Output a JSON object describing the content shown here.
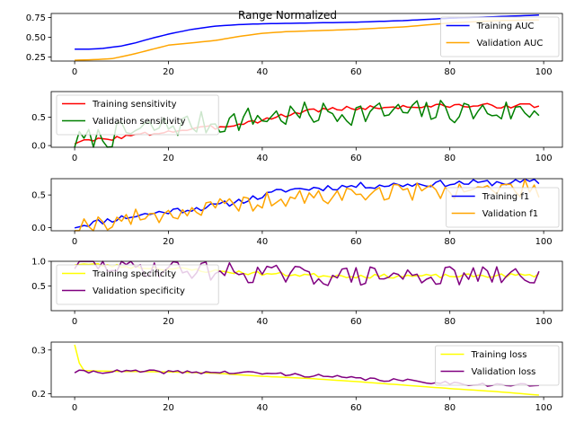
{
  "figure": {
    "title": "Range Normalized"
  },
  "chart_data": [
    {
      "type": "line",
      "ylim": [
        0.2,
        0.8
      ],
      "xlim": [
        -5,
        104
      ],
      "yticks": [
        0.25,
        0.5,
        0.75
      ],
      "ytick_labels": [
        "0.25",
        "0.50",
        "0.75"
      ],
      "xticks": [
        0,
        20,
        40,
        60,
        80,
        100
      ],
      "xtick_labels": [
        "0",
        "20",
        "40",
        "60",
        "80",
        "100"
      ],
      "legend": "upper-right",
      "series": [
        {
          "name": "Training AUC",
          "color": "#0000ff",
          "kind": "smooth",
          "keypoints": [
            [
              0,
              0.35
            ],
            [
              3,
              0.35
            ],
            [
              6,
              0.36
            ],
            [
              10,
              0.39
            ],
            [
              13,
              0.43
            ],
            [
              16,
              0.48
            ],
            [
              20,
              0.54
            ],
            [
              25,
              0.6
            ],
            [
              30,
              0.64
            ],
            [
              35,
              0.66
            ],
            [
              40,
              0.67
            ],
            [
              50,
              0.68
            ],
            [
              60,
              0.69
            ],
            [
              70,
              0.71
            ],
            [
              80,
              0.74
            ],
            [
              90,
              0.76
            ],
            [
              99,
              0.78
            ]
          ]
        },
        {
          "name": "Validation AUC",
          "color": "#ffa500",
          "kind": "smooth",
          "keypoints": [
            [
              0,
              0.21
            ],
            [
              5,
              0.22
            ],
            [
              8,
              0.23
            ],
            [
              12,
              0.28
            ],
            [
              16,
              0.34
            ],
            [
              20,
              0.4
            ],
            [
              25,
              0.43
            ],
            [
              30,
              0.46
            ],
            [
              35,
              0.51
            ],
            [
              40,
              0.55
            ],
            [
              45,
              0.57
            ],
            [
              50,
              0.58
            ],
            [
              60,
              0.6
            ],
            [
              70,
              0.63
            ],
            [
              80,
              0.68
            ],
            [
              90,
              0.71
            ],
            [
              99,
              0.72
            ]
          ]
        }
      ]
    },
    {
      "type": "line",
      "ylim": [
        -0.03,
        0.95
      ],
      "xlim": [
        -5,
        104
      ],
      "yticks": [
        0.0,
        0.5
      ],
      "ytick_labels": [
        "0.0",
        "0.5"
      ],
      "xticks": [
        0,
        20,
        40,
        60,
        80,
        100
      ],
      "xtick_labels": [
        "0",
        "20",
        "40",
        "60",
        "80",
        "100"
      ],
      "legend": "upper-left",
      "series": [
        {
          "name": "Training sensitivity",
          "color": "#ff0000",
          "kind": "ramp-noise",
          "keypoints": [
            [
              0,
              0.05
            ],
            [
              10,
              0.15
            ],
            [
              20,
              0.25
            ],
            [
              30,
              0.32
            ],
            [
              40,
              0.45
            ],
            [
              50,
              0.62
            ],
            [
              60,
              0.66
            ],
            [
              70,
              0.68
            ],
            [
              80,
              0.7
            ],
            [
              99,
              0.7
            ]
          ],
          "noise": 0.04,
          "seed": 3
        },
        {
          "name": "Validation sensitivity",
          "color": "#008000",
          "kind": "ramp-noise",
          "keypoints": [
            [
              0,
              0.05
            ],
            [
              10,
              0.2
            ],
            [
              20,
              0.35
            ],
            [
              30,
              0.4
            ],
            [
              40,
              0.5
            ],
            [
              50,
              0.55
            ],
            [
              60,
              0.58
            ],
            [
              70,
              0.58
            ],
            [
              80,
              0.6
            ],
            [
              99,
              0.6
            ]
          ],
          "noise": 0.22,
          "seed": 7
        }
      ]
    },
    {
      "type": "line",
      "ylim": [
        -0.05,
        0.75
      ],
      "xlim": [
        -5,
        104
      ],
      "yticks": [
        0.0,
        0.5
      ],
      "ytick_labels": [
        "0.0",
        "0.5"
      ],
      "xticks": [
        0,
        20,
        40,
        60,
        80,
        100
      ],
      "xtick_labels": [
        "0",
        "20",
        "40",
        "60",
        "80",
        "100"
      ],
      "legend": "lower-right",
      "series": [
        {
          "name": "Training f1",
          "color": "#0000ff",
          "kind": "ramp-noise",
          "keypoints": [
            [
              0,
              0.02
            ],
            [
              10,
              0.15
            ],
            [
              20,
              0.25
            ],
            [
              30,
              0.33
            ],
            [
              40,
              0.48
            ],
            [
              45,
              0.58
            ],
            [
              50,
              0.6
            ],
            [
              60,
              0.64
            ],
            [
              70,
              0.66
            ],
            [
              80,
              0.68
            ],
            [
              99,
              0.7
            ]
          ],
          "noise": 0.05,
          "seed": 11
        },
        {
          "name": "Validation f1",
          "color": "#ffa500",
          "kind": "ramp-noise",
          "keypoints": [
            [
              0,
              0.02
            ],
            [
              10,
              0.12
            ],
            [
              20,
              0.22
            ],
            [
              30,
              0.3
            ],
            [
              40,
              0.4
            ],
            [
              50,
              0.45
            ],
            [
              60,
              0.52
            ],
            [
              70,
              0.55
            ],
            [
              80,
              0.58
            ],
            [
              99,
              0.6
            ]
          ],
          "noise": 0.14,
          "seed": 19
        }
      ]
    },
    {
      "type": "line",
      "ylim": [
        0.0,
        1.0
      ],
      "xlim": [
        -5,
        104
      ],
      "yticks": [
        0.5,
        1.0
      ],
      "ytick_labels": [
        "0.5",
        "1.0"
      ],
      "xticks": [
        0,
        20,
        40,
        60,
        80,
        100
      ],
      "xtick_labels": [
        "0",
        "20",
        "40",
        "60",
        "80",
        "100"
      ],
      "legend": "upper-left",
      "series": [
        {
          "name": "Training specificity",
          "color": "#ffff00",
          "kind": "ramp-noise",
          "keypoints": [
            [
              0,
              0.95
            ],
            [
              10,
              0.9
            ],
            [
              20,
              0.85
            ],
            [
              30,
              0.8
            ],
            [
              40,
              0.75
            ],
            [
              50,
              0.72
            ],
            [
              60,
              0.7
            ],
            [
              80,
              0.7
            ],
            [
              99,
              0.72
            ]
          ],
          "noise": 0.04,
          "seed": 23
        },
        {
          "name": "Validation specificity",
          "color": "#800080",
          "kind": "ramp-noise",
          "keypoints": [
            [
              0,
              0.95
            ],
            [
              10,
              0.9
            ],
            [
              20,
              0.85
            ],
            [
              30,
              0.8
            ],
            [
              40,
              0.75
            ],
            [
              50,
              0.7
            ],
            [
              60,
              0.7
            ],
            [
              80,
              0.7
            ],
            [
              99,
              0.7
            ]
          ],
          "noise": 0.2,
          "seed": 29
        }
      ]
    },
    {
      "type": "line",
      "ylim": [
        0.193,
        0.318
      ],
      "xlim": [
        -5,
        104
      ],
      "yticks": [
        0.2,
        0.3
      ],
      "ytick_labels": [
        "0.2",
        "0.3"
      ],
      "xticks": [
        0,
        20,
        40,
        60,
        80,
        100
      ],
      "xtick_labels": [
        "0",
        "20",
        "40",
        "60",
        "80",
        "100"
      ],
      "legend": "upper-right",
      "series": [
        {
          "name": "Training loss",
          "color": "#ffff00",
          "kind": "smooth",
          "keypoints": [
            [
              0,
              0.312
            ],
            [
              1,
              0.27
            ],
            [
              2,
              0.253
            ],
            [
              5,
              0.252
            ],
            [
              10,
              0.251
            ],
            [
              20,
              0.25
            ],
            [
              30,
              0.247
            ],
            [
              40,
              0.24
            ],
            [
              50,
              0.235
            ],
            [
              60,
              0.228
            ],
            [
              70,
              0.22
            ],
            [
              80,
              0.212
            ],
            [
              90,
              0.205
            ],
            [
              99,
              0.197
            ]
          ]
        },
        {
          "name": "Validation loss",
          "color": "#800080",
          "kind": "ramp-noise",
          "keypoints": [
            [
              0,
              0.25
            ],
            [
              10,
              0.251
            ],
            [
              20,
              0.25
            ],
            [
              30,
              0.249
            ],
            [
              40,
              0.247
            ],
            [
              50,
              0.242
            ],
            [
              60,
              0.235
            ],
            [
              70,
              0.23
            ],
            [
              80,
              0.225
            ],
            [
              90,
              0.22
            ],
            [
              99,
              0.22
            ]
          ],
          "noise": 0.004,
          "seed": 41
        }
      ]
    }
  ]
}
